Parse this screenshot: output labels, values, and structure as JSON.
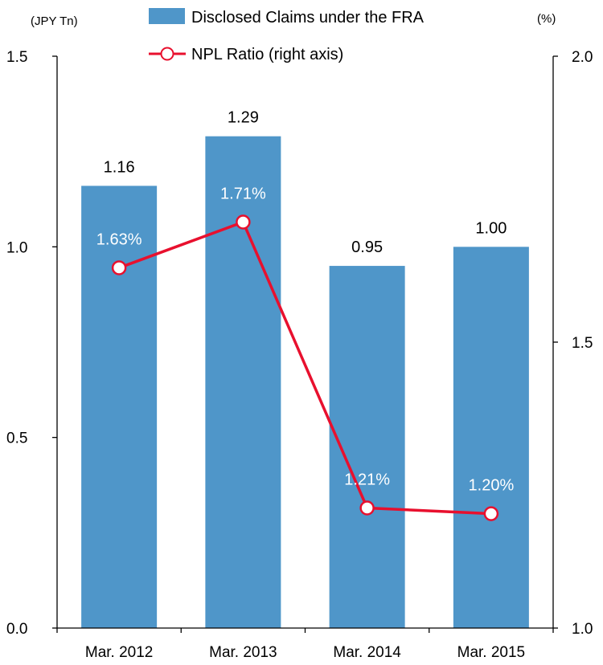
{
  "chart_data": {
    "type": "bar",
    "categories": [
      "Mar. 2012",
      "Mar. 2013",
      "Mar. 2014",
      "Mar. 2015"
    ],
    "series": [
      {
        "name": "Disclosed Claims under the FRA",
        "type": "bar",
        "axis": "left",
        "values": [
          1.16,
          1.29,
          0.95,
          1.0
        ],
        "labels": [
          "1.16",
          "1.29",
          "0.95",
          "1.00"
        ],
        "color": "#4f96c9"
      },
      {
        "name": "NPL Ratio (right axis)",
        "type": "line",
        "axis": "right",
        "values": [
          1.63,
          1.71,
          1.21,
          1.2
        ],
        "labels": [
          "1.63%",
          "1.71%",
          "1.21%",
          "1.20%"
        ],
        "color": "#e8102e"
      }
    ],
    "left_axis": {
      "unit": "(JPY Tn)",
      "ylim": [
        0.0,
        1.5
      ],
      "ticks": [
        "0.0",
        "0.5",
        "1.0",
        "1.5"
      ]
    },
    "right_axis": {
      "unit": "(%)",
      "ylim": [
        1.0,
        2.0
      ],
      "ticks": [
        "1.0",
        "1.5",
        "2.0"
      ]
    },
    "legend": "top-center",
    "grid": false
  }
}
